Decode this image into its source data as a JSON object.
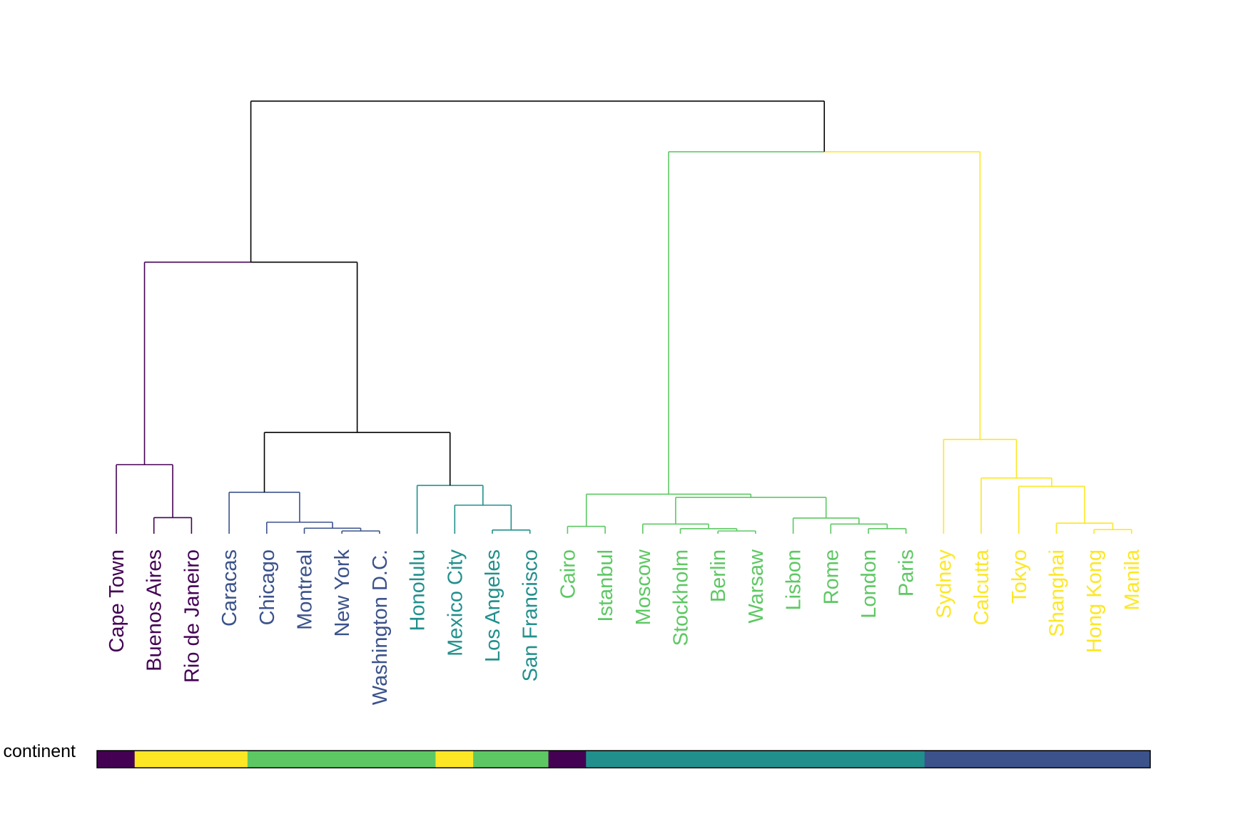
{
  "colors": {
    "c1": "#440154",
    "c2": "#3b528b",
    "c3": "#21908c",
    "c4": "#5dc863",
    "c5": "#fde725",
    "trunk": "#000000"
  },
  "leaves": [
    {
      "label": "Cape Town",
      "group": "c1"
    },
    {
      "label": "Buenos Aires",
      "group": "c1"
    },
    {
      "label": "Rio de Janeiro",
      "group": "c1"
    },
    {
      "label": "Caracas",
      "group": "c2"
    },
    {
      "label": "Chicago",
      "group": "c2"
    },
    {
      "label": "Montreal",
      "group": "c2"
    },
    {
      "label": "New York",
      "group": "c2"
    },
    {
      "label": "Washington D.C.",
      "group": "c2"
    },
    {
      "label": "Honolulu",
      "group": "c3"
    },
    {
      "label": "Mexico City",
      "group": "c3"
    },
    {
      "label": "Los Angeles",
      "group": "c3"
    },
    {
      "label": "San Francisco",
      "group": "c3"
    },
    {
      "label": "Cairo",
      "group": "c4"
    },
    {
      "label": "Istanbul",
      "group": "c4"
    },
    {
      "label": "Moscow",
      "group": "c4"
    },
    {
      "label": "Stockholm",
      "group": "c4"
    },
    {
      "label": "Berlin",
      "group": "c4"
    },
    {
      "label": "Warsaw",
      "group": "c4"
    },
    {
      "label": "Lisbon",
      "group": "c4"
    },
    {
      "label": "Rome",
      "group": "c4"
    },
    {
      "label": "London",
      "group": "c4"
    },
    {
      "label": "Paris",
      "group": "c4"
    },
    {
      "label": "Sydney",
      "group": "c5"
    },
    {
      "label": "Calcutta",
      "group": "c5"
    },
    {
      "label": "Tokyo",
      "group": "c5"
    },
    {
      "label": "Shanghai",
      "group": "c5"
    },
    {
      "label": "Hong Kong",
      "group": "c5"
    },
    {
      "label": "Manila",
      "group": "c5"
    }
  ],
  "tree": {
    "h": 0.94,
    "color": "trunk",
    "children": [
      {
        "h": 0.59,
        "color": "trunk",
        "children": [
          {
            "h": 0.59,
            "color": "c1",
            "children": [
              {
                "h": 0.15,
                "color": "c1",
                "children": [
                  0,
                  {
                    "h": 0.035,
                    "color": "c1",
                    "children": [
                      1,
                      2
                    ]
                  }
                ]
              },
              0.15
            ],
            "_note": ""
          },
          {
            "h": 0.22,
            "color": "trunk",
            "children": [
              {
                "h": 0.09,
                "color": "c2",
                "children": [
                  3,
                  {
                    "h": 0.025,
                    "color": "c2",
                    "children": [
                      4,
                      {
                        "h": 0.012,
                        "color": "c2",
                        "children": [
                          5,
                          {
                            "h": 0.006,
                            "color": "c2",
                            "children": [
                              6,
                              7
                            ]
                          }
                        ]
                      }
                    ]
                  }
                ]
              },
              {
                "h": 0.105,
                "color": "c3",
                "children": [
                  8,
                  {
                    "h": 0.062,
                    "color": "c3",
                    "children": [
                      9,
                      {
                        "h": 0.008,
                        "color": "c3",
                        "children": [
                          10,
                          11
                        ]
                      }
                    ]
                  }
                ]
              }
            ]
          }
        ]
      },
      {
        "h": 0.83,
        "color": "trunk",
        "children": [
          {
            "h": 0.086,
            "color": "c4",
            "children": [
              {
                "h": 0.016,
                "color": "c4",
                "children": [
                  12,
                  13
                ]
              },
              {
                "h": 0.079,
                "color": "c4",
                "children": [
                  {
                    "h": 0.021,
                    "color": "c4",
                    "children": [
                      14,
                      {
                        "h": 0.011,
                        "color": "c4",
                        "children": [
                          15,
                          {
                            "h": 0.006,
                            "color": "c4",
                            "children": [
                              16,
                              17
                            ]
                          }
                        ]
                      }
                    ]
                  },
                  {
                    "h": 0.034,
                    "color": "c4",
                    "children": [
                      18,
                      {
                        "h": 0.021,
                        "color": "c4",
                        "children": [
                          19,
                          {
                            "h": 0.011,
                            "color": "c4",
                            "children": [
                              20,
                              21
                            ]
                          }
                        ]
                      }
                    ]
                  }
                ]
              }
            ]
          },
          {
            "h": 0.205,
            "color": "c5",
            "children": [
              22,
              {
                "h": 0.121,
                "color": "c5",
                "children": [
                  23,
                  {
                    "h": 0.103,
                    "color": "c5",
                    "children": [
                      24,
                      {
                        "h": 0.023,
                        "color": "c5",
                        "children": [
                          25,
                          {
                            "h": 0.009,
                            "color": "c5",
                            "children": [
                              26,
                              27
                            ]
                          }
                        ]
                      }
                    ]
                  }
                ]
              }
            ]
          }
        ]
      }
    ]
  },
  "bar": {
    "label": "continent",
    "segments": [
      {
        "span": 1,
        "color": "c1"
      },
      {
        "span": 3,
        "color": "c5"
      },
      {
        "span": 5,
        "color": "c4"
      },
      {
        "span": 1,
        "color": "c5"
      },
      {
        "span": 2,
        "color": "c4"
      },
      {
        "span": 1,
        "color": "c1"
      },
      {
        "span": 9,
        "color": "c3"
      },
      {
        "span": 6,
        "color": "c2"
      }
    ]
  }
}
